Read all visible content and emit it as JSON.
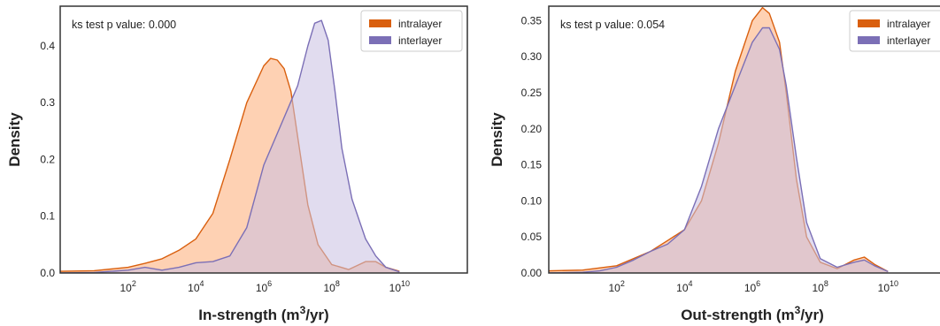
{
  "chart_data": [
    {
      "type": "area",
      "xlabel_main": "In-strength (m",
      "xlabel_sup": "3",
      "xlabel_tail": "/yr)",
      "ylabel": "Density",
      "annotation": "ks test p value: 0.000",
      "x_scale": "log10",
      "xlim": [
        1,
        1000000000000.0
      ],
      "ylim": [
        0,
        0.47
      ],
      "x_ticks": [
        {
          "base": "10",
          "exp": "2",
          "value": 100
        },
        {
          "base": "10",
          "exp": "4",
          "value": 10000
        },
        {
          "base": "10",
          "exp": "6",
          "value": 1000000
        },
        {
          "base": "10",
          "exp": "8",
          "value": 100000000
        },
        {
          "base": "10",
          "exp": "10",
          "value": 10000000000
        }
      ],
      "y_ticks": [
        {
          "value": 0.0,
          "label": "0.0"
        },
        {
          "value": 0.1,
          "label": "0.1"
        },
        {
          "value": 0.2,
          "label": "0.2"
        },
        {
          "value": 0.3,
          "label": "0.3"
        },
        {
          "value": 0.4,
          "label": "0.4"
        }
      ],
      "legend_position": "top-right",
      "series": [
        {
          "name": "intralayer",
          "line_color": "#d95f0e",
          "fill_color": "#fdb98a",
          "x_log10": [
            0,
            1,
            2,
            2.5,
            3,
            3.5,
            4,
            4.5,
            5,
            5.5,
            6,
            6.2,
            6.4,
            6.6,
            6.8,
            7,
            7.3,
            7.6,
            8,
            8.5,
            9,
            9.3,
            9.6,
            10
          ],
          "density": [
            0.003,
            0.004,
            0.01,
            0.017,
            0.025,
            0.04,
            0.06,
            0.105,
            0.2,
            0.3,
            0.365,
            0.378,
            0.375,
            0.36,
            0.32,
            0.24,
            0.12,
            0.05,
            0.015,
            0.006,
            0.02,
            0.02,
            0.01,
            0.003
          ]
        },
        {
          "name": "interlayer",
          "line_color": "#7b6fb6",
          "fill_color": "#c9c0e2",
          "x_log10": [
            0,
            1,
            1.5,
            2,
            2.5,
            3,
            3.5,
            4,
            4.5,
            5,
            5.5,
            6,
            6.5,
            7,
            7.3,
            7.5,
            7.7,
            7.9,
            8.1,
            8.3,
            8.6,
            9,
            9.3,
            9.6,
            10
          ],
          "density": [
            0.0,
            0.001,
            0.003,
            0.005,
            0.01,
            0.005,
            0.01,
            0.018,
            0.02,
            0.03,
            0.08,
            0.19,
            0.26,
            0.33,
            0.4,
            0.44,
            0.445,
            0.41,
            0.32,
            0.22,
            0.13,
            0.06,
            0.03,
            0.01,
            0.002
          ]
        }
      ]
    },
    {
      "type": "area",
      "xlabel_main": "Out-strength (m",
      "xlabel_sup": "3",
      "xlabel_tail": "/yr)",
      "ylabel": "Density",
      "annotation": "ks test p value: 0.054",
      "x_scale": "log10",
      "xlim": [
        1,
        1000000000000.0
      ],
      "ylim": [
        0,
        0.37
      ],
      "x_ticks": [
        {
          "base": "10",
          "exp": "2",
          "value": 100
        },
        {
          "base": "10",
          "exp": "4",
          "value": 10000
        },
        {
          "base": "10",
          "exp": "6",
          "value": 1000000
        },
        {
          "base": "10",
          "exp": "8",
          "value": 100000000
        },
        {
          "base": "10",
          "exp": "10",
          "value": 10000000000
        }
      ],
      "y_ticks": [
        {
          "value": 0.0,
          "label": "0.00"
        },
        {
          "value": 0.05,
          "label": "0.05"
        },
        {
          "value": 0.1,
          "label": "0.10"
        },
        {
          "value": 0.15,
          "label": "0.15"
        },
        {
          "value": 0.2,
          "label": "0.20"
        },
        {
          "value": 0.25,
          "label": "0.25"
        },
        {
          "value": 0.3,
          "label": "0.30"
        },
        {
          "value": 0.35,
          "label": "0.35"
        }
      ],
      "legend_position": "top-right",
      "series": [
        {
          "name": "intralayer",
          "line_color": "#d95f0e",
          "fill_color": "#fdb98a",
          "x_log10": [
            0,
            1,
            2,
            3,
            3.5,
            4,
            4.5,
            5,
            5.5,
            6,
            6.3,
            6.5,
            6.8,
            7,
            7.3,
            7.6,
            8,
            8.5,
            9,
            9.3,
            9.6,
            10
          ],
          "density": [
            0.003,
            0.004,
            0.01,
            0.03,
            0.045,
            0.06,
            0.1,
            0.18,
            0.28,
            0.35,
            0.368,
            0.36,
            0.32,
            0.25,
            0.13,
            0.05,
            0.015,
            0.006,
            0.018,
            0.022,
            0.012,
            0.002
          ]
        },
        {
          "name": "interlayer",
          "line_color": "#7b6fb6",
          "fill_color": "#c9c0e2",
          "x_log10": [
            0,
            1,
            1.5,
            2,
            2.5,
            3,
            3.5,
            4,
            4.5,
            5,
            5.5,
            6,
            6.3,
            6.5,
            6.8,
            7,
            7.3,
            7.6,
            8,
            8.5,
            9,
            9.3,
            9.6,
            10
          ],
          "density": [
            0.0,
            0.001,
            0.003,
            0.008,
            0.018,
            0.03,
            0.04,
            0.06,
            0.12,
            0.2,
            0.26,
            0.32,
            0.34,
            0.34,
            0.31,
            0.26,
            0.16,
            0.07,
            0.02,
            0.008,
            0.015,
            0.018,
            0.01,
            0.002
          ]
        }
      ]
    }
  ]
}
